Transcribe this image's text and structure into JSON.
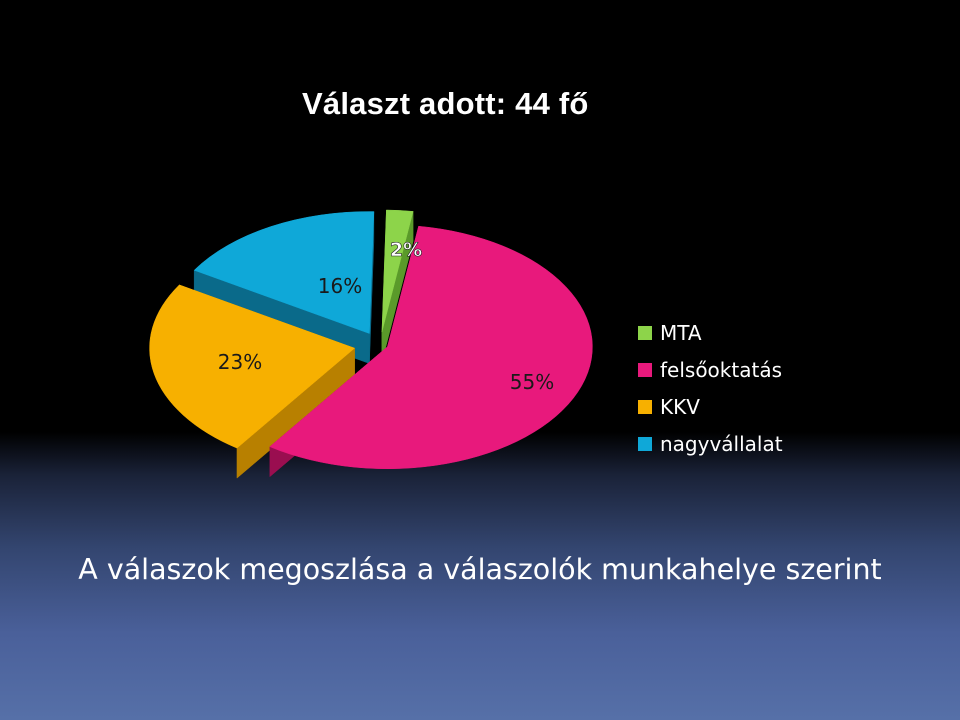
{
  "slide": {
    "title": "Választ adott: 44 fő",
    "caption": "A válaszok megoszlása a válaszolók munkahelye szerint"
  },
  "chart_data": {
    "type": "pie",
    "style": "3d-exploded",
    "categories": [
      "MTA",
      "felsőoktatás",
      "KKV",
      "nagyvállalat"
    ],
    "values": [
      2,
      55,
      23,
      16
    ],
    "data_labels": [
      "2%",
      "55%",
      "23%",
      "16%"
    ],
    "colors": [
      "#8dd44a",
      "#e8197c",
      "#f7b000",
      "#0fa8d8"
    ],
    "side_colors": [
      "#5a9a2a",
      "#9a0e50",
      "#b88000",
      "#0a6a8a"
    ],
    "legend_position": "right",
    "title": ""
  }
}
